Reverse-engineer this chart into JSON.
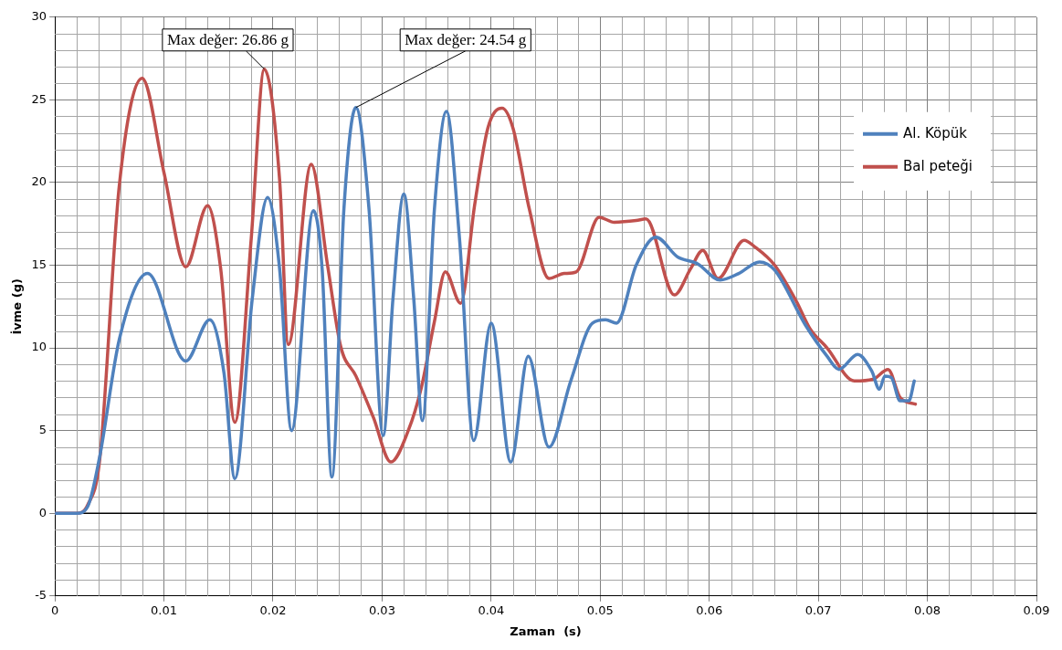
{
  "chart_data": {
    "type": "line",
    "xlabel": "Zaman  (s)",
    "ylabel": "İvme (g)",
    "xlim": [
      0,
      0.09
    ],
    "xticks": [
      0,
      0.01,
      0.02,
      0.03,
      0.04,
      0.05,
      0.06,
      0.07,
      0.08,
      0.09
    ],
    "ylim": [
      -5,
      30
    ],
    "yticks": [
      -5,
      0,
      5,
      10,
      15,
      20,
      25,
      30
    ],
    "grid": true,
    "legend": "right",
    "marker": "none",
    "line_style": "solid",
    "annotations": [
      {
        "text": "Max değer: 26.86 g",
        "x": 0.0192,
        "y": 26.86
      },
      {
        "text": "Max değer: 24.54 g",
        "x": 0.0276,
        "y": 24.54
      }
    ],
    "series": [
      {
        "name": "Al. Köpük",
        "color": "#4f81bd",
        "x": [
          0,
          0.002,
          0.003,
          0.0041,
          0.0059,
          0.0085,
          0.012,
          0.0142,
          0.0155,
          0.0165,
          0.0181,
          0.0195,
          0.0206,
          0.0217,
          0.0237,
          0.0245,
          0.0254,
          0.0265,
          0.0276,
          0.0288,
          0.0301,
          0.031,
          0.032,
          0.0329,
          0.0337,
          0.0348,
          0.0359,
          0.0371,
          0.0384,
          0.04,
          0.0418,
          0.0434,
          0.0453,
          0.0473,
          0.0493,
          0.0505,
          0.0515,
          0.0533,
          0.0551,
          0.0571,
          0.0589,
          0.061,
          0.0627,
          0.0646,
          0.066,
          0.0688,
          0.0708,
          0.0719,
          0.0736,
          0.0749,
          0.0756,
          0.0761,
          0.0767,
          0.0775,
          0.0783,
          0.0788
        ],
        "values": [
          0,
          0,
          0.4,
          3.4,
          10.5,
          14.5,
          9.2,
          11.7,
          8.5,
          2.1,
          13,
          19.1,
          14.8,
          5,
          18.3,
          14.8,
          2.2,
          18.4,
          24.54,
          18.4,
          4.7,
          13,
          19.3,
          13,
          5.6,
          18.4,
          24.3,
          16.6,
          4.4,
          11.5,
          3.1,
          9.5,
          4,
          8,
          11.5,
          11.7,
          11.5,
          15,
          16.7,
          15.5,
          15.1,
          14.1,
          14.5,
          15.2,
          14.7,
          11.4,
          9.5,
          8.7,
          9.6,
          8.6,
          7.5,
          8.3,
          8.2,
          6.8,
          6.8,
          8
        ]
      },
      {
        "name": "Bal peteği",
        "color": "#c0504d",
        "x": [
          0,
          0.002,
          0.003,
          0.0041,
          0.0059,
          0.008,
          0.01,
          0.012,
          0.014,
          0.0152,
          0.0165,
          0.018,
          0.0192,
          0.0206,
          0.0214,
          0.0235,
          0.025,
          0.0262,
          0.0276,
          0.0292,
          0.0308,
          0.0324,
          0.0336,
          0.0348,
          0.0358,
          0.0372,
          0.0385,
          0.0397,
          0.041,
          0.042,
          0.0435,
          0.0453,
          0.0467,
          0.0478,
          0.0499,
          0.0513,
          0.0533,
          0.0542,
          0.0568,
          0.0583,
          0.0594,
          0.0608,
          0.0632,
          0.0642,
          0.066,
          0.068,
          0.0692,
          0.0708,
          0.0733,
          0.075,
          0.0764,
          0.0775,
          0.0789
        ],
        "values": [
          0,
          0,
          0.5,
          3.2,
          19.8,
          26.3,
          20.6,
          14.9,
          18.6,
          14.8,
          5.5,
          16.6,
          26.86,
          20.2,
          10.2,
          21.1,
          15,
          10.1,
          8.3,
          5.8,
          3.1,
          5,
          7.6,
          11.6,
          14.6,
          12.7,
          18.7,
          23.3,
          24.5,
          23.3,
          18.4,
          14.2,
          14.5,
          14.6,
          17.9,
          17.6,
          17.7,
          17.8,
          13.2,
          14.8,
          15.9,
          14.2,
          16.5,
          16.1,
          15,
          12.8,
          11.2,
          10,
          8,
          8.1,
          8.7,
          7,
          6.6
        ]
      }
    ]
  }
}
